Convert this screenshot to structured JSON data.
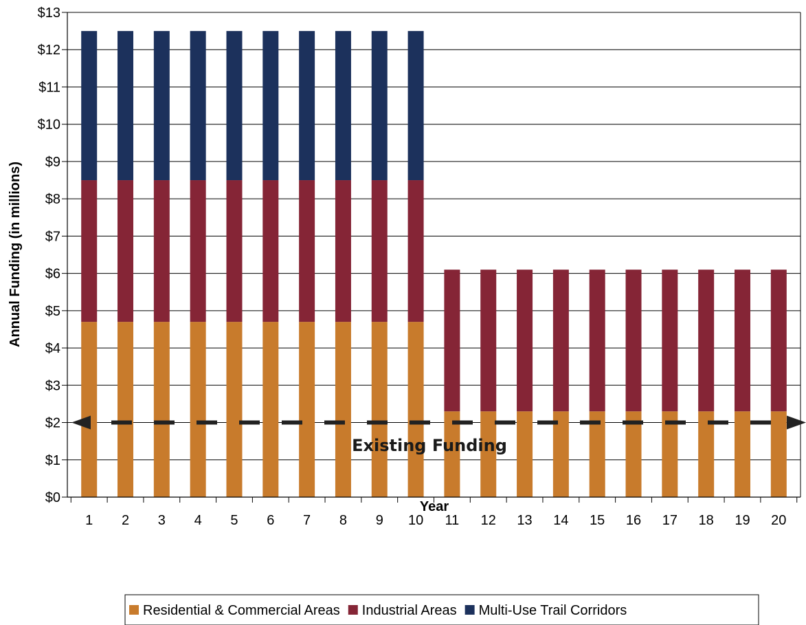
{
  "chart_data": {
    "type": "bar",
    "stacked": true,
    "title": "",
    "xlabel": "Year",
    "ylabel": "Annual Funding (in millions)",
    "ylim": [
      0,
      13
    ],
    "y_ticks": [
      "$0",
      "$1",
      "$2",
      "$3",
      "$4",
      "$5",
      "$6",
      "$7",
      "$8",
      "$9",
      "$10",
      "$11",
      "$12",
      "$13"
    ],
    "categories": [
      "1",
      "2",
      "3",
      "4",
      "5",
      "6",
      "7",
      "8",
      "9",
      "10",
      "11",
      "12",
      "13",
      "14",
      "15",
      "16",
      "17",
      "18",
      "19",
      "20"
    ],
    "grid": true,
    "legend_position": "bottom",
    "series": [
      {
        "name": "Residential & Commercial Areas",
        "color": "#c87b2c",
        "values": [
          4.7,
          4.7,
          4.7,
          4.7,
          4.7,
          4.7,
          4.7,
          4.7,
          4.7,
          4.7,
          2.3,
          2.3,
          2.3,
          2.3,
          2.3,
          2.3,
          2.3,
          2.3,
          2.3,
          2.3
        ]
      },
      {
        "name": "Industrial Areas",
        "color": "#852536",
        "values": [
          3.8,
          3.8,
          3.8,
          3.8,
          3.8,
          3.8,
          3.8,
          3.8,
          3.8,
          3.8,
          3.8,
          3.8,
          3.8,
          3.8,
          3.8,
          3.8,
          3.8,
          3.8,
          3.8,
          3.8
        ]
      },
      {
        "name": "Multi-Use Trail Corridors",
        "color": "#1c315c",
        "values": [
          4.0,
          4.0,
          4.0,
          4.0,
          4.0,
          4.0,
          4.0,
          4.0,
          4.0,
          4.0,
          0,
          0,
          0,
          0,
          0,
          0,
          0,
          0,
          0,
          0
        ]
      }
    ],
    "reference_line": {
      "value": 2,
      "label": "Existing Funding",
      "style": "dashed-double-arrow"
    }
  }
}
